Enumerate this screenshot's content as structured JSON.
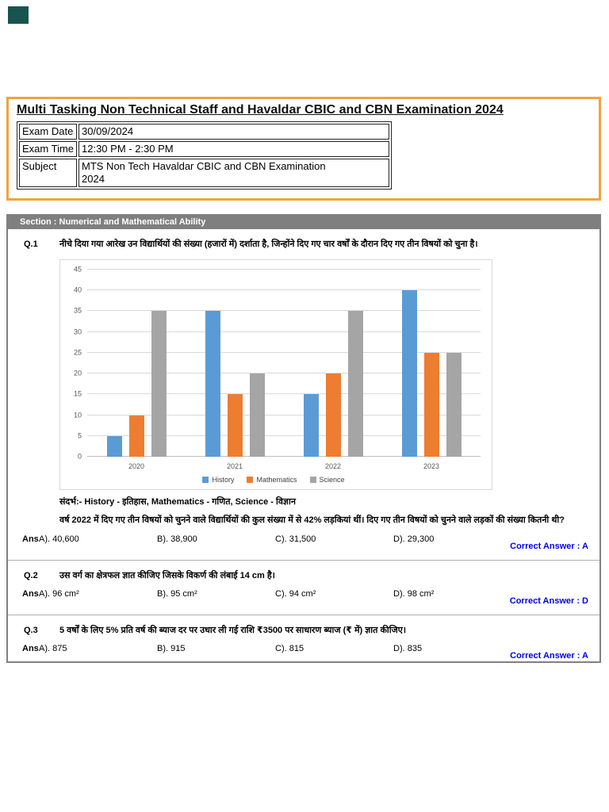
{
  "header": {
    "title": "Multi Tasking Non Technical Staff and Havaldar CBIC and CBN Examination 2024",
    "info": [
      {
        "label": "Exam Date",
        "value": "30/09/2024"
      },
      {
        "label": "Exam Time",
        "value": "12:30 PM - 2:30 PM"
      },
      {
        "label": "Subject",
        "value": "MTS Non Tech Havaldar CBIC and CBN Examination 2024"
      }
    ]
  },
  "section": {
    "title": "Section : Numerical and Mathematical Ability"
  },
  "questions": [
    {
      "number": "Q.1",
      "text": "नीचे दिया गया आरेख उन विद्यार्थियों की संख्या (हजारों में) दर्शाता है, जिन्होंने दिए गए चार वर्षों के दौरान दिए गए तीन विषयों को चुना है।",
      "reference": "संदर्भ:- History - इतिहास, Mathematics - गणित, Science - विज्ञान",
      "text2": "वर्ष 2022 में दिए गए तीन विषयों को चुनने वाले विद्यार्थियों की कुल संख्या में से 42% लड़कियां थीं। दिए गए तीन विषयों को चुनने वाले लड़कों की संख्या कितनी थी?",
      "ans_label": "Ans",
      "options": [
        "A). 40,600",
        "B). 38,900",
        "C). 31,500",
        "D). 29,300"
      ],
      "correct": "Correct Answer : A"
    },
    {
      "number": "Q.2",
      "text": "उस वर्ग का क्षेत्रफल ज्ञात कीजिए जिसके विकर्ण की लंबाई 14 cm है।",
      "ans_label": "Ans",
      "options": [
        "A). 96 cm²",
        "B). 95 cm²",
        "C). 94 cm²",
        "D). 98 cm²"
      ],
      "correct": "Correct Answer : D"
    },
    {
      "number": "Q.3",
      "text": "5 वर्षों के लिए 5% प्रति वर्ष की ब्याज दर पर उधार ली गई राशि ₹3500 पर साधारण ब्याज (₹ में) ज्ञात कीजिए।",
      "ans_label": "Ans",
      "options": [
        "A). 875",
        "B). 915",
        "C). 815",
        "D). 835"
      ],
      "correct": "Correct Answer : A"
    }
  ],
  "chart_data": {
    "type": "bar",
    "title": "",
    "categories": [
      "2020",
      "2021",
      "2022",
      "2023"
    ],
    "series": [
      {
        "name": "History",
        "color": "#5B9BD5",
        "values": [
          5,
          35,
          15,
          40
        ]
      },
      {
        "name": "Mathematics",
        "color": "#ED7D31",
        "values": [
          10,
          15,
          20,
          25
        ]
      },
      {
        "name": "Science",
        "color": "#A5A5A5",
        "values": [
          35,
          20,
          35,
          25
        ]
      }
    ],
    "ylim": [
      0,
      45
    ],
    "ytick_step": 5,
    "grid": true,
    "legend_position": "bottom"
  },
  "colors": {
    "accent_orange": "#F2A33A",
    "panel_gray": "#808080",
    "section_gray": "#7F7F7F",
    "answer_blue": "#0000EE",
    "logo_teal": "#175450"
  }
}
